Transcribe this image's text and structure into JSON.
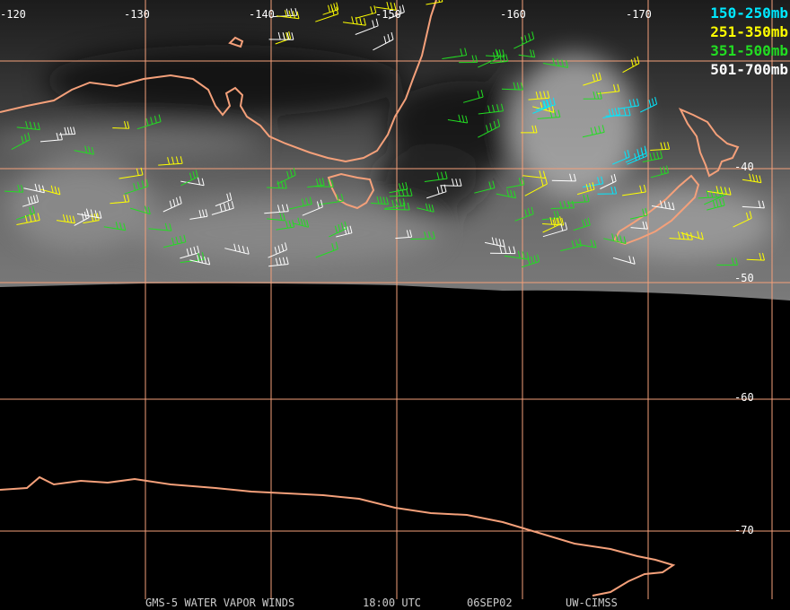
{
  "map": {
    "lon_labels": [
      "-120",
      "-130",
      "-140",
      "-150",
      "-160",
      "-170"
    ],
    "lat_labels": [
      "-40",
      "-50",
      "-60",
      "-70"
    ],
    "legend": [
      {
        "label": "150-250mb",
        "color": "#00e8ff"
      },
      {
        "label": "251-350mb",
        "color": "#ffff00"
      },
      {
        "label": "351-500mb",
        "color": "#22dd22"
      },
      {
        "label": "501-700mb",
        "color": "#ffffff"
      }
    ],
    "footer": {
      "satellite": "GMS-5 WATER VAPOR WINDS",
      "time": "18:00 UTC",
      "date": "06SEP02",
      "source": "UW-CIMSS"
    }
  }
}
